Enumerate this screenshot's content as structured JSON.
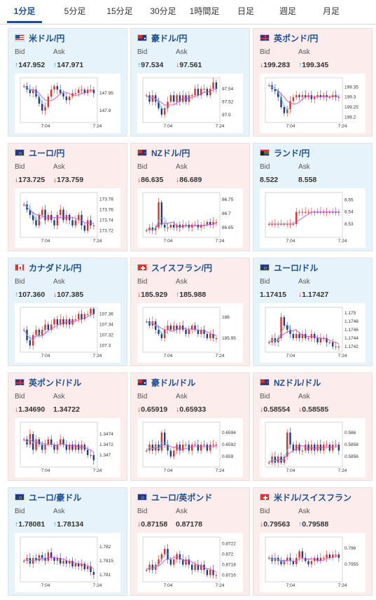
{
  "tabs": [
    {
      "label": "1分足",
      "active": true
    },
    {
      "label": "5分足",
      "active": false
    },
    {
      "label": "15分足",
      "active": false
    },
    {
      "label": "30分足",
      "active": false
    },
    {
      "label": "1時間足",
      "active": false
    },
    {
      "label": "日足",
      "active": false
    },
    {
      "label": "週足",
      "active": false
    },
    {
      "label": "月足",
      "active": false
    }
  ],
  "labels": {
    "bid": "Bid",
    "ask": "Ask"
  },
  "colors": {
    "up": "#2a9fd6",
    "down": "#e0302a",
    "blue_bg": "#e6f3fb",
    "pink_bg": "#fcecec",
    "title": "#1a4f94",
    "ma": "#c84fd0",
    "ma2": "#5bc0e0"
  },
  "pairs": [
    {
      "name": "米ドル/円",
      "flag": "us",
      "bg": "blue",
      "bid_dir": "up",
      "bid": "147.952",
      "ask_dir": "up",
      "ask": "147.971",
      "chart_data": {
        "type": "candlestick",
        "x_ticks": [
          "7:04",
          "7:24"
        ],
        "y_ticks": [
          147.95,
          147.9
        ],
        "ylim": [
          147.87,
          147.99
        ],
        "close": [
          147.97,
          147.96,
          147.95,
          147.96,
          147.94,
          147.92,
          147.9,
          147.91,
          147.94,
          147.96,
          147.97,
          147.96,
          147.95,
          147.94,
          147.93,
          147.94,
          147.95,
          147.95,
          147.96,
          147.96,
          147.95,
          147.96,
          147.96,
          147.95
        ]
      }
    },
    {
      "name": "豪ドル/円",
      "flag": "au",
      "bg": "blue",
      "bid_dir": "up",
      "bid": "97.534",
      "ask_dir": "down",
      "ask": "97.561",
      "chart_data": {
        "type": "candlestick",
        "x_ticks": [
          "7:04",
          "7:24"
        ],
        "y_ticks": [
          97.54,
          97.52,
          97.5
        ],
        "ylim": [
          97.49,
          97.555
        ],
        "close": [
          97.53,
          97.52,
          97.53,
          97.52,
          97.51,
          97.5,
          97.51,
          97.52,
          97.53,
          97.52,
          97.53,
          97.52,
          97.53,
          97.52,
          97.53,
          97.53,
          97.54,
          97.53,
          97.54,
          97.54,
          97.53,
          97.54,
          97.55,
          97.54
        ]
      }
    },
    {
      "name": "英ポンド/円",
      "flag": "gb",
      "bg": "pink",
      "bid_dir": "down",
      "bid": "199.283",
      "ask_dir": "up",
      "ask": "199.345",
      "chart_data": {
        "type": "candlestick",
        "x_ticks": [
          "7:04",
          "7:24"
        ],
        "y_ticks": [
          199.35,
          199.3,
          199.25,
          199.2
        ],
        "ylim": [
          199.18,
          199.39
        ],
        "close": [
          199.36,
          199.34,
          199.33,
          199.3,
          199.25,
          199.22,
          199.24,
          199.28,
          199.3,
          199.31,
          199.3,
          199.31,
          199.3,
          199.31,
          199.29,
          199.3,
          199.31,
          199.3,
          199.31,
          199.3,
          199.3,
          199.31,
          199.3,
          199.3
        ]
      }
    },
    {
      "name": "ユーロ/円",
      "flag": "eu",
      "bg": "pink",
      "bid_dir": "down",
      "bid": "173.725",
      "ask_dir": "down",
      "ask": "173.759",
      "chart_data": {
        "type": "candlestick",
        "x_ticks": [
          "7:04",
          "7:24"
        ],
        "y_ticks": [
          173.78,
          173.76,
          173.74,
          173.72
        ],
        "ylim": [
          173.71,
          173.79
        ],
        "close": [
          173.77,
          173.76,
          173.75,
          173.74,
          173.73,
          173.75,
          173.76,
          173.74,
          173.75,
          173.74,
          173.73,
          173.75,
          173.76,
          173.74,
          173.75,
          173.74,
          173.73,
          173.74,
          173.75,
          173.73,
          173.72,
          173.74,
          173.73,
          173.73
        ]
      }
    },
    {
      "name": "NZドル/円",
      "flag": "nz",
      "bg": "pink",
      "bid_dir": "down",
      "bid": "86.635",
      "ask_dir": "down",
      "ask": "86.689",
      "chart_data": {
        "type": "candlestick",
        "x_ticks": [
          "7:04",
          "7:24"
        ],
        "y_ticks": [
          86.75,
          86.7,
          86.65
        ],
        "ylim": [
          86.62,
          86.77
        ],
        "close": [
          86.64,
          86.65,
          86.64,
          86.65,
          86.74,
          86.66,
          86.65,
          86.65,
          86.66,
          86.65,
          86.66,
          86.65,
          86.66,
          86.66,
          86.65,
          86.66,
          86.66,
          86.65,
          86.66,
          86.66,
          86.67,
          86.66,
          86.67,
          86.67
        ]
      }
    },
    {
      "name": "ランド/円",
      "flag": "za",
      "bg": "blue",
      "bid_dir": "none",
      "bid": "8.522",
      "ask_dir": "none",
      "ask": "8.558",
      "chart_data": {
        "type": "candlestick",
        "x_ticks": [
          "7:04",
          "7:24"
        ],
        "y_ticks": [
          8.55,
          8.54,
          8.53
        ],
        "ylim": [
          8.52,
          8.555
        ],
        "close": [
          8.53,
          8.53,
          8.53,
          8.53,
          8.53,
          8.53,
          8.53,
          8.53,
          8.53,
          8.54,
          8.54,
          8.54,
          8.54,
          8.54,
          8.54,
          8.54,
          8.54,
          8.54,
          8.54,
          8.54,
          8.54,
          8.54,
          8.54,
          8.54
        ]
      }
    },
    {
      "name": "カナダドル/円",
      "flag": "ca",
      "bg": "blue",
      "bid_dir": "up",
      "bid": "107.360",
      "ask_dir": "down",
      "ask": "107.385",
      "chart_data": {
        "type": "candlestick",
        "x_ticks": [
          "7:04",
          "7:24"
        ],
        "y_ticks": [
          107.36,
          107.34,
          107.32,
          107.3
        ],
        "ylim": [
          107.29,
          107.37
        ],
        "close": [
          107.33,
          107.31,
          107.3,
          107.32,
          107.33,
          107.32,
          107.33,
          107.34,
          107.33,
          107.34,
          107.35,
          107.34,
          107.35,
          107.34,
          107.35,
          107.34,
          107.35,
          107.35,
          107.36,
          107.35,
          107.36,
          107.36,
          107.37,
          107.36
        ]
      }
    },
    {
      "name": "スイスフラン/円",
      "flag": "ch",
      "bg": "pink",
      "bid_dir": "down",
      "bid": "185.929",
      "ask_dir": "up",
      "ask": "185.988",
      "chart_data": {
        "type": "candlestick",
        "x_ticks": [
          "7:04",
          "7:24"
        ],
        "y_ticks": [
          186,
          185.95
        ],
        "ylim": [
          185.92,
          186.02
        ],
        "close": [
          185.99,
          185.98,
          185.99,
          185.97,
          185.96,
          185.95,
          185.97,
          185.98,
          185.97,
          185.98,
          185.97,
          185.98,
          185.97,
          185.96,
          185.97,
          185.98,
          185.97,
          185.96,
          185.97,
          185.96,
          185.95,
          185.96,
          185.95,
          185.95
        ]
      }
    },
    {
      "name": "ユーロ/ドル",
      "flag": "eu",
      "bg": "blue",
      "bid_dir": "none",
      "bid": "1.17415",
      "ask_dir": "down",
      "ask": "1.17427",
      "chart_data": {
        "type": "candlestick",
        "x_ticks": [
          "7:04",
          "7:24"
        ],
        "y_ticks": [
          1.175,
          1.1748,
          1.1746,
          1.1744,
          1.1742
        ],
        "ylim": [
          1.1741,
          1.1751
        ],
        "close": [
          1.1743,
          1.1744,
          1.1743,
          1.1744,
          1.1749,
          1.1747,
          1.1746,
          1.1745,
          1.1744,
          1.1745,
          1.1744,
          1.1745,
          1.1744,
          1.1744,
          1.1745,
          1.1744,
          1.1743,
          1.1744,
          1.1744,
          1.1743,
          1.1743,
          1.1742,
          1.1742,
          1.1742
        ]
      }
    },
    {
      "name": "英ポンド/ドル",
      "flag": "gb",
      "bg": "pink",
      "bid_dir": "down",
      "bid": "1.34690",
      "ask_dir": "none",
      "ask": "1.34722",
      "chart_data": {
        "type": "candlestick",
        "x_ticks": [
          "7:04",
          "7:24"
        ],
        "y_ticks": [
          1.3474,
          1.3472,
          1.347
        ],
        "ylim": [
          1.3468,
          1.3476
        ],
        "close": [
          1.3473,
          1.3472,
          1.3474,
          1.3471,
          1.3473,
          1.3472,
          1.3471,
          1.3472,
          1.3473,
          1.3472,
          1.3471,
          1.3472,
          1.3473,
          1.3472,
          1.3471,
          1.3472,
          1.3471,
          1.3472,
          1.3471,
          1.3472,
          1.3471,
          1.347,
          1.347,
          1.3469
        ]
      }
    },
    {
      "name": "豪ドル/ドル",
      "flag": "au",
      "bg": "pink",
      "bid_dir": "down",
      "bid": "0.65919",
      "ask_dir": "down",
      "ask": "0.65933",
      "chart_data": {
        "type": "candlestick",
        "x_ticks": [
          "7:04",
          "7:24"
        ],
        "y_ticks": [
          0.6594,
          0.6592,
          0.659
        ],
        "ylim": [
          0.65885,
          0.65955
        ],
        "close": [
          0.6591,
          0.6592,
          0.6591,
          0.6592,
          0.6591,
          0.6594,
          0.6592,
          0.6591,
          0.659,
          0.6591,
          0.6592,
          0.6591,
          0.6592,
          0.6592,
          0.6591,
          0.6592,
          0.6592,
          0.6591,
          0.6592,
          0.6592,
          0.6591,
          0.6592,
          0.6592,
          0.6592
        ]
      }
    },
    {
      "name": "NZドル/ドル",
      "flag": "nz",
      "bg": "pink",
      "bid_dir": "down",
      "bid": "0.58554",
      "ask_dir": "down",
      "ask": "0.58585",
      "chart_data": {
        "type": "candlestick",
        "x_ticks": [
          "7:04",
          "7:24"
        ],
        "y_ticks": [
          0.586,
          0.5858,
          0.5856
        ],
        "ylim": [
          0.58545,
          0.58615
        ],
        "close": [
          0.5855,
          0.5856,
          0.5855,
          0.5856,
          0.5855,
          0.5856,
          0.586,
          0.5858,
          0.5857,
          0.5858,
          0.5857,
          0.5857,
          0.5858,
          0.5857,
          0.5858,
          0.5857,
          0.5858,
          0.5857,
          0.5858,
          0.5858,
          0.5857,
          0.5858,
          0.5858,
          0.5857
        ]
      }
    },
    {
      "name": "ユーロ/豪ドル",
      "flag": "eu",
      "bg": "blue",
      "bid_dir": "up",
      "bid": "1.78081",
      "ask_dir": "up",
      "ask": "1.78134",
      "chart_data": {
        "type": "candlestick",
        "x_ticks": [
          "7:04",
          "7:24"
        ],
        "y_ticks": [
          1.782,
          1.7815,
          1.781
        ],
        "ylim": [
          1.7808,
          1.7823
        ],
        "close": [
          1.7815,
          1.7816,
          1.7814,
          1.7816,
          1.7815,
          1.7817,
          1.7816,
          1.7815,
          1.7818,
          1.7816,
          1.7815,
          1.7816,
          1.7814,
          1.7815,
          1.7814,
          1.7815,
          1.7813,
          1.7814,
          1.7813,
          1.7814,
          1.7812,
          1.7813,
          1.7811,
          1.781
        ]
      }
    },
    {
      "name": "ユーロ/英ポンド",
      "flag": "eu",
      "bg": "pink",
      "bid_dir": "down",
      "bid": "0.87158",
      "ask_dir": "none",
      "ask": "0.87178",
      "chart_data": {
        "type": "candlestick",
        "x_ticks": [
          "7:04",
          "7:24"
        ],
        "y_ticks": [
          0.8722,
          0.872,
          0.8718,
          0.8716
        ],
        "ylim": [
          0.8715,
          0.8723
        ],
        "close": [
          0.8717,
          0.8718,
          0.8717,
          0.8718,
          0.8719,
          0.872,
          0.8721,
          0.8719,
          0.8718,
          0.8719,
          0.872,
          0.8719,
          0.8718,
          0.8719,
          0.8718,
          0.8717,
          0.8718,
          0.8717,
          0.8718,
          0.8717,
          0.8716,
          0.8717,
          0.8716,
          0.8716
        ]
      }
    },
    {
      "name": "米ドル/スイスフラン",
      "flag": "ch",
      "bg": "pink",
      "bid_dir": "down",
      "bid": "0.79563",
      "ask_dir": "up",
      "ask": "0.79588",
      "chart_data": {
        "type": "candlestick",
        "x_ticks": [
          "7:04",
          "7:24"
        ],
        "y_ticks": [
          0.796,
          0.7955
        ],
        "ylim": [
          0.795,
          0.7963
        ],
        "close": [
          0.7957,
          0.7956,
          0.7957,
          0.7956,
          0.7955,
          0.7956,
          0.7957,
          0.7956,
          0.7955,
          0.7957,
          0.7959,
          0.7957,
          0.7956,
          0.7955,
          0.7956,
          0.7957,
          0.7956,
          0.7957,
          0.7957,
          0.7958,
          0.7957,
          0.7958,
          0.7958,
          0.7957
        ]
      }
    }
  ]
}
